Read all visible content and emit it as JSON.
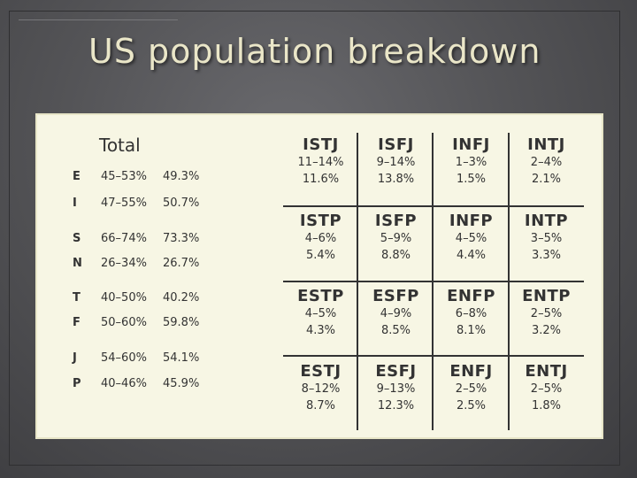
{
  "slide": {
    "title": "US population breakdown"
  },
  "totals": {
    "header": "Total",
    "rows": [
      {
        "letter": "E",
        "range": "45–53%",
        "pct": "49.3%"
      },
      {
        "letter": "I",
        "range": "47–55%",
        "pct": "50.7%"
      },
      {
        "letter": "S",
        "range": "66–74%",
        "pct": "73.3%"
      },
      {
        "letter": "N",
        "range": "26–34%",
        "pct": "26.7%"
      },
      {
        "letter": "T",
        "range": "40–50%",
        "pct": "40.2%"
      },
      {
        "letter": "F",
        "range": "50–60%",
        "pct": "59.8%"
      },
      {
        "letter": "J",
        "range": "54–60%",
        "pct": "54.1%"
      },
      {
        "letter": "P",
        "range": "40–46%",
        "pct": "45.9%"
      }
    ]
  },
  "types": [
    [
      {
        "type": "ISTJ",
        "range": "11–14%",
        "pct": "11.6%"
      },
      {
        "type": "ISFJ",
        "range": "9–14%",
        "pct": "13.8%"
      },
      {
        "type": "INFJ",
        "range": "1–3%",
        "pct": "1.5%"
      },
      {
        "type": "INTJ",
        "range": "2–4%",
        "pct": "2.1%"
      }
    ],
    [
      {
        "type": "ISTP",
        "range": "4–6%",
        "pct": "5.4%"
      },
      {
        "type": "ISFP",
        "range": "5–9%",
        "pct": "8.8%"
      },
      {
        "type": "INFP",
        "range": "4–5%",
        "pct": "4.4%"
      },
      {
        "type": "INTP",
        "range": "3–5%",
        "pct": "3.3%"
      }
    ],
    [
      {
        "type": "ESTP",
        "range": "4–5%",
        "pct": "4.3%"
      },
      {
        "type": "ESFP",
        "range": "4–9%",
        "pct": "8.5%"
      },
      {
        "type": "ENFP",
        "range": "6–8%",
        "pct": "8.1%"
      },
      {
        "type": "ENTP",
        "range": "2–5%",
        "pct": "3.2%"
      }
    ],
    [
      {
        "type": "ESTJ",
        "range": "8–12%",
        "pct": "8.7%"
      },
      {
        "type": "ESFJ",
        "range": "9–13%",
        "pct": "12.3%"
      },
      {
        "type": "ENFJ",
        "range": "2–5%",
        "pct": "2.5%"
      },
      {
        "type": "ENTJ",
        "range": "2–5%",
        "pct": "1.8%"
      }
    ]
  ]
}
